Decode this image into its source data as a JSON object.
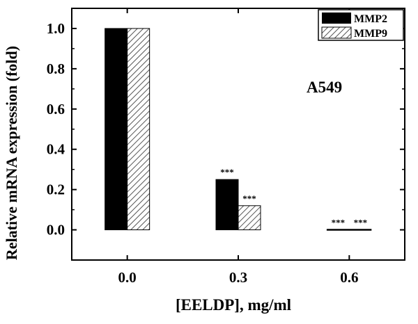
{
  "chart_data": {
    "type": "bar",
    "categories": [
      "0.0",
      "0.3",
      "0.6"
    ],
    "series": [
      {
        "name": "MMP2",
        "values": [
          1.0,
          0.25,
          0.0
        ],
        "annotations": [
          "",
          "***",
          "***"
        ]
      },
      {
        "name": "MMP9",
        "values": [
          1.0,
          0.12,
          0.0
        ],
        "annotations": [
          "",
          "***",
          "***"
        ]
      }
    ],
    "ylim": [
      -0.15,
      1.1
    ],
    "yticks": [
      "0.0",
      "0.2",
      "0.4",
      "0.6",
      "0.8",
      "1.0"
    ],
    "xlabel": "[EELDP], mg/ml",
    "ylabel": "Relative mRNA expression (fold)",
    "annotation": "A549",
    "legend_position": "top-right",
    "grid": false,
    "colors": {
      "MMP2": "#000000",
      "MMP9": "hatched"
    }
  }
}
